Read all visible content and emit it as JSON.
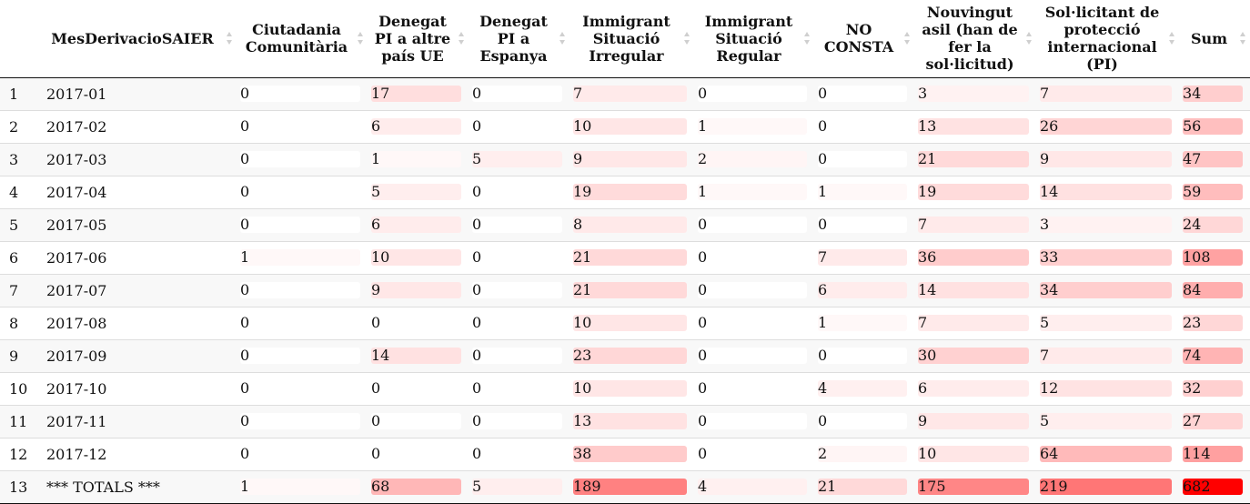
{
  "table": {
    "columns": [
      {
        "key": "idx",
        "label": ""
      },
      {
        "key": "month",
        "label": "MesDerivacioSAIER"
      },
      {
        "key": "c1",
        "label": "Ciutadania Comunitària"
      },
      {
        "key": "c2",
        "label": "Denegat PI a altre país UE"
      },
      {
        "key": "c3",
        "label": "Denegat PI a Espanya"
      },
      {
        "key": "c4",
        "label": "Immigrant Situació Irregular"
      },
      {
        "key": "c5",
        "label": "Immigrant Situació Regular"
      },
      {
        "key": "c6",
        "label": "NO CONSTA"
      },
      {
        "key": "c7",
        "label": "Nouvingut asil (han de fer la sol·licitud)"
      },
      {
        "key": "c8",
        "label": "Sol·licitant de protecció internacional (PI)"
      },
      {
        "key": "sum",
        "label": "Sum"
      }
    ],
    "rows": [
      {
        "idx": "1",
        "month": "2017-01",
        "values": [
          0,
          17,
          0,
          7,
          0,
          0,
          3,
          7,
          34
        ]
      },
      {
        "idx": "2",
        "month": "2017-02",
        "values": [
          0,
          6,
          0,
          10,
          1,
          0,
          13,
          26,
          56
        ]
      },
      {
        "idx": "3",
        "month": "2017-03",
        "values": [
          0,
          1,
          5,
          9,
          2,
          0,
          21,
          9,
          47
        ]
      },
      {
        "idx": "4",
        "month": "2017-04",
        "values": [
          0,
          5,
          0,
          19,
          1,
          1,
          19,
          14,
          59
        ]
      },
      {
        "idx": "5",
        "month": "2017-05",
        "values": [
          0,
          6,
          0,
          8,
          0,
          0,
          7,
          3,
          24
        ]
      },
      {
        "idx": "6",
        "month": "2017-06",
        "values": [
          1,
          10,
          0,
          21,
          0,
          7,
          36,
          33,
          108
        ]
      },
      {
        "idx": "7",
        "month": "2017-07",
        "values": [
          0,
          9,
          0,
          21,
          0,
          6,
          14,
          34,
          84
        ]
      },
      {
        "idx": "8",
        "month": "2017-08",
        "values": [
          0,
          0,
          0,
          10,
          0,
          1,
          7,
          5,
          23
        ]
      },
      {
        "idx": "9",
        "month": "2017-09",
        "values": [
          0,
          14,
          0,
          23,
          0,
          0,
          30,
          7,
          74
        ]
      },
      {
        "idx": "10",
        "month": "2017-10",
        "values": [
          0,
          0,
          0,
          10,
          0,
          4,
          6,
          12,
          32
        ]
      },
      {
        "idx": "11",
        "month": "2017-11",
        "values": [
          0,
          0,
          0,
          13,
          0,
          0,
          9,
          5,
          27
        ]
      },
      {
        "idx": "12",
        "month": "2017-12",
        "values": [
          0,
          0,
          0,
          38,
          0,
          2,
          10,
          64,
          114
        ]
      },
      {
        "idx": "13",
        "month": "*** TOTALS ***",
        "values": [
          1,
          68,
          5,
          189,
          4,
          21,
          175,
          219,
          682
        ]
      }
    ],
    "max_value": 682,
    "colors": {
      "heat_low": "#ffffff",
      "heat_high": "#ff0000",
      "heat_mid": "#ffb3b3",
      "header_border": "#111111",
      "row_border": "#dddddd",
      "stripe": "#f8f8f8"
    }
  }
}
